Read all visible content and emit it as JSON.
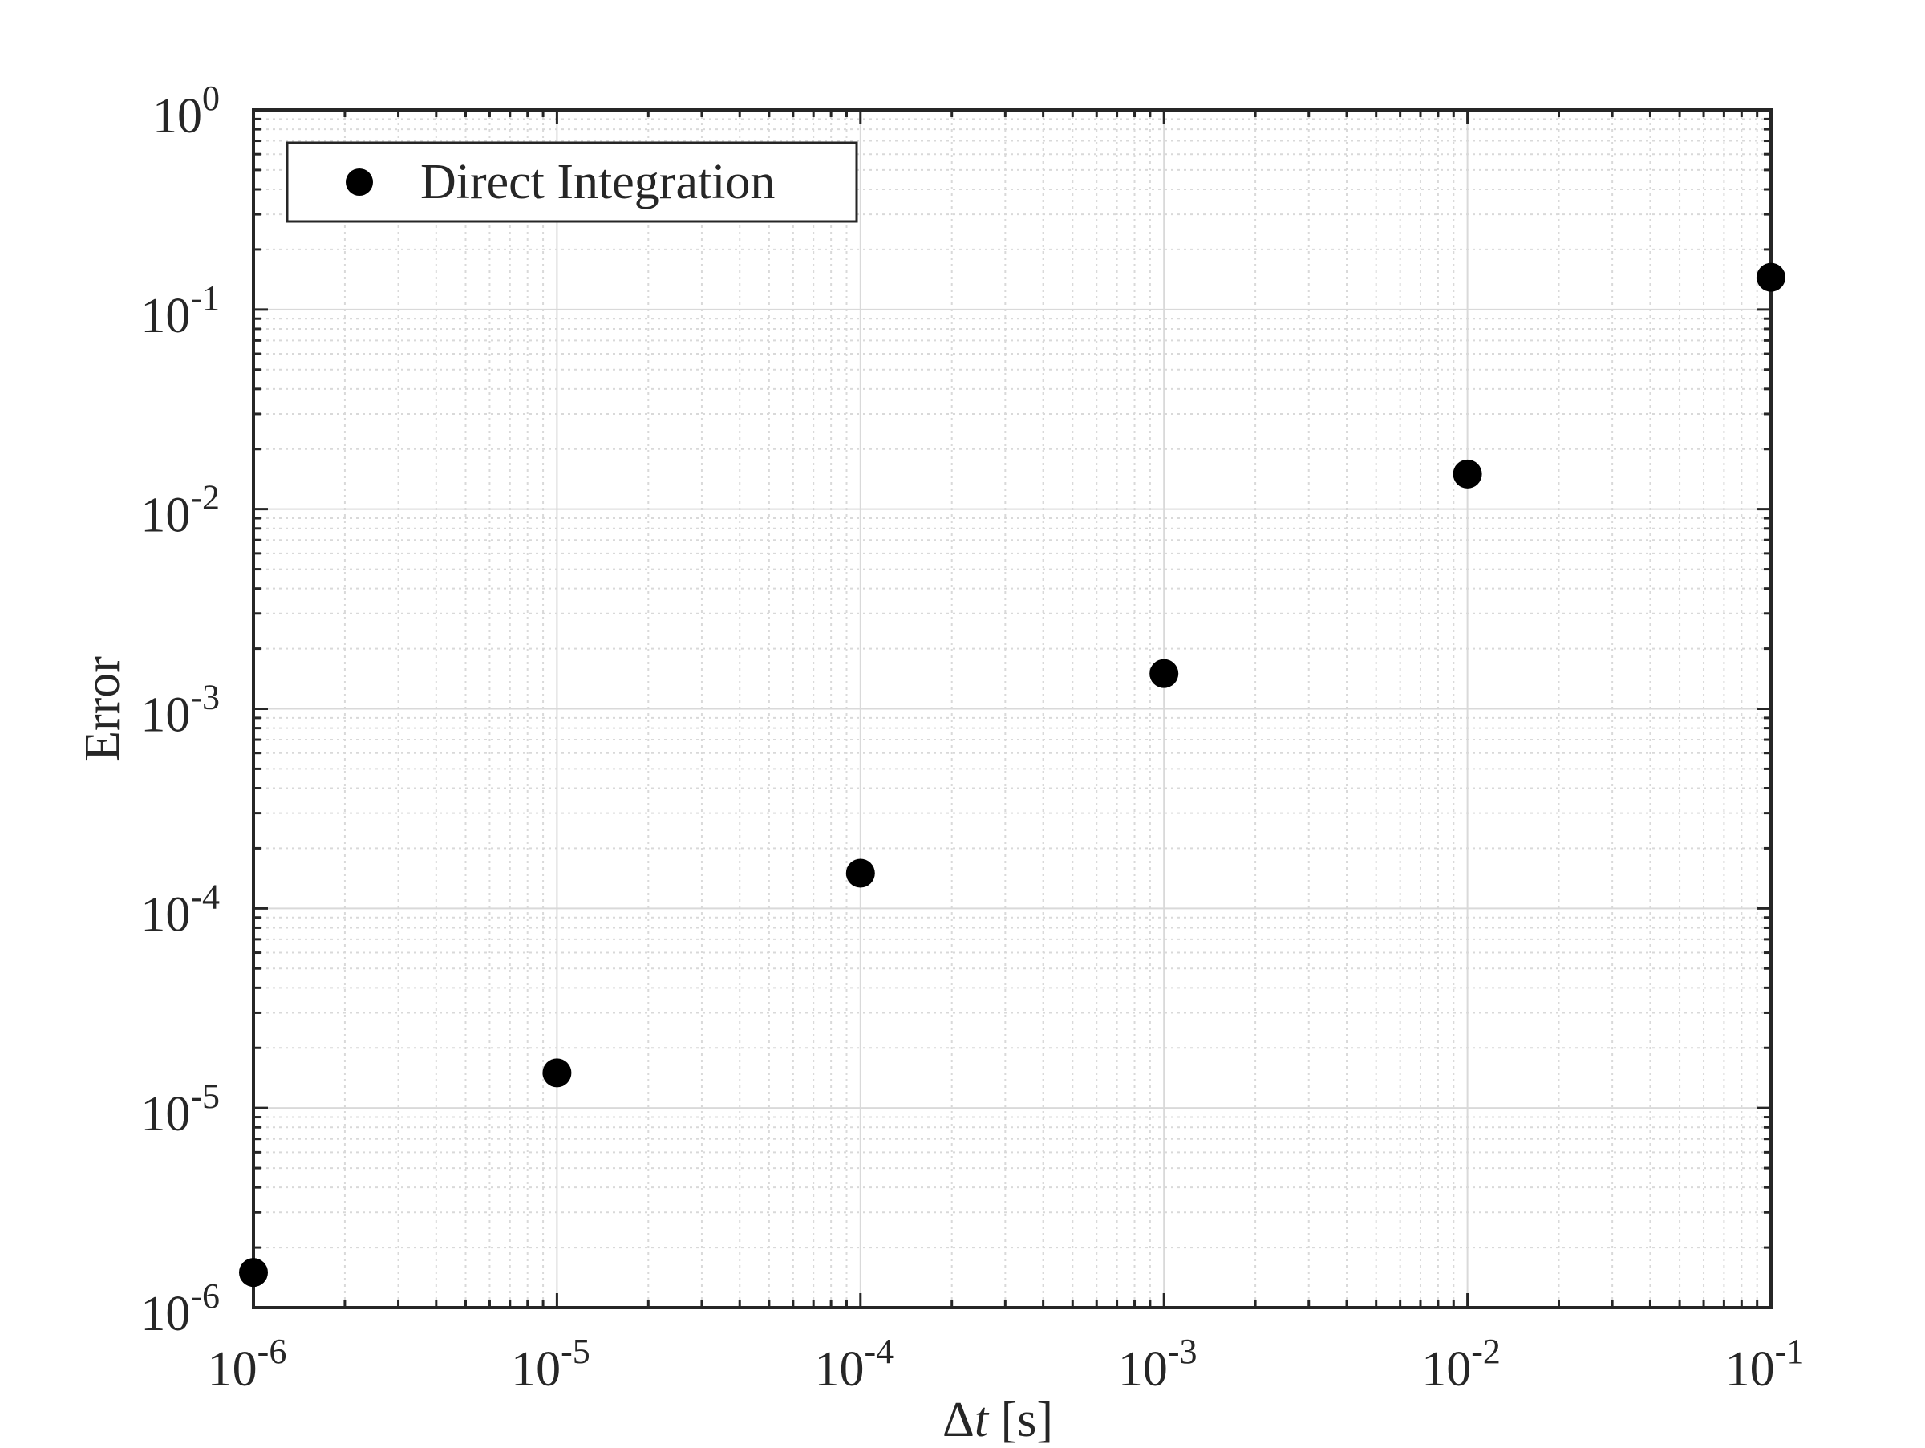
{
  "chart_data": {
    "type": "scatter",
    "title": "",
    "xlabel": {
      "symbol": "Δ",
      "variable": "t",
      "unit": " [s]"
    },
    "ylabel": "Error",
    "xscale": "log",
    "yscale": "log",
    "xlim": [
      1e-06,
      0.1
    ],
    "ylim": [
      1e-06,
      1.0
    ],
    "grid": {
      "major": true,
      "minor": true
    },
    "box": true,
    "legend": {
      "position": "top-left"
    },
    "x_ticks": [
      {
        "base": "10",
        "exp": "-6"
      },
      {
        "base": "10",
        "exp": "-5"
      },
      {
        "base": "10",
        "exp": "-4"
      },
      {
        "base": "10",
        "exp": "-3"
      },
      {
        "base": "10",
        "exp": "-2"
      },
      {
        "base": "10",
        "exp": "-1"
      }
    ],
    "y_ticks": [
      {
        "base": "10",
        "exp": "-6"
      },
      {
        "base": "10",
        "exp": "-5"
      },
      {
        "base": "10",
        "exp": "-4"
      },
      {
        "base": "10",
        "exp": "-3"
      },
      {
        "base": "10",
        "exp": "-2"
      },
      {
        "base": "10",
        "exp": "-1"
      },
      {
        "base": "10",
        "exp": "0"
      }
    ],
    "series": [
      {
        "name": "Direct Integration",
        "marker": "filled-circle",
        "color": "#000000",
        "x": [
          1e-06,
          1e-05,
          0.0001,
          0.001,
          0.01,
          0.1
        ],
        "y": [
          1.5e-06,
          1.5e-05,
          0.00015,
          0.0015,
          0.015,
          0.145
        ]
      }
    ]
  },
  "colors": {
    "axes": "#262626",
    "grid": "#d9d9d9",
    "marker": "#000000"
  }
}
